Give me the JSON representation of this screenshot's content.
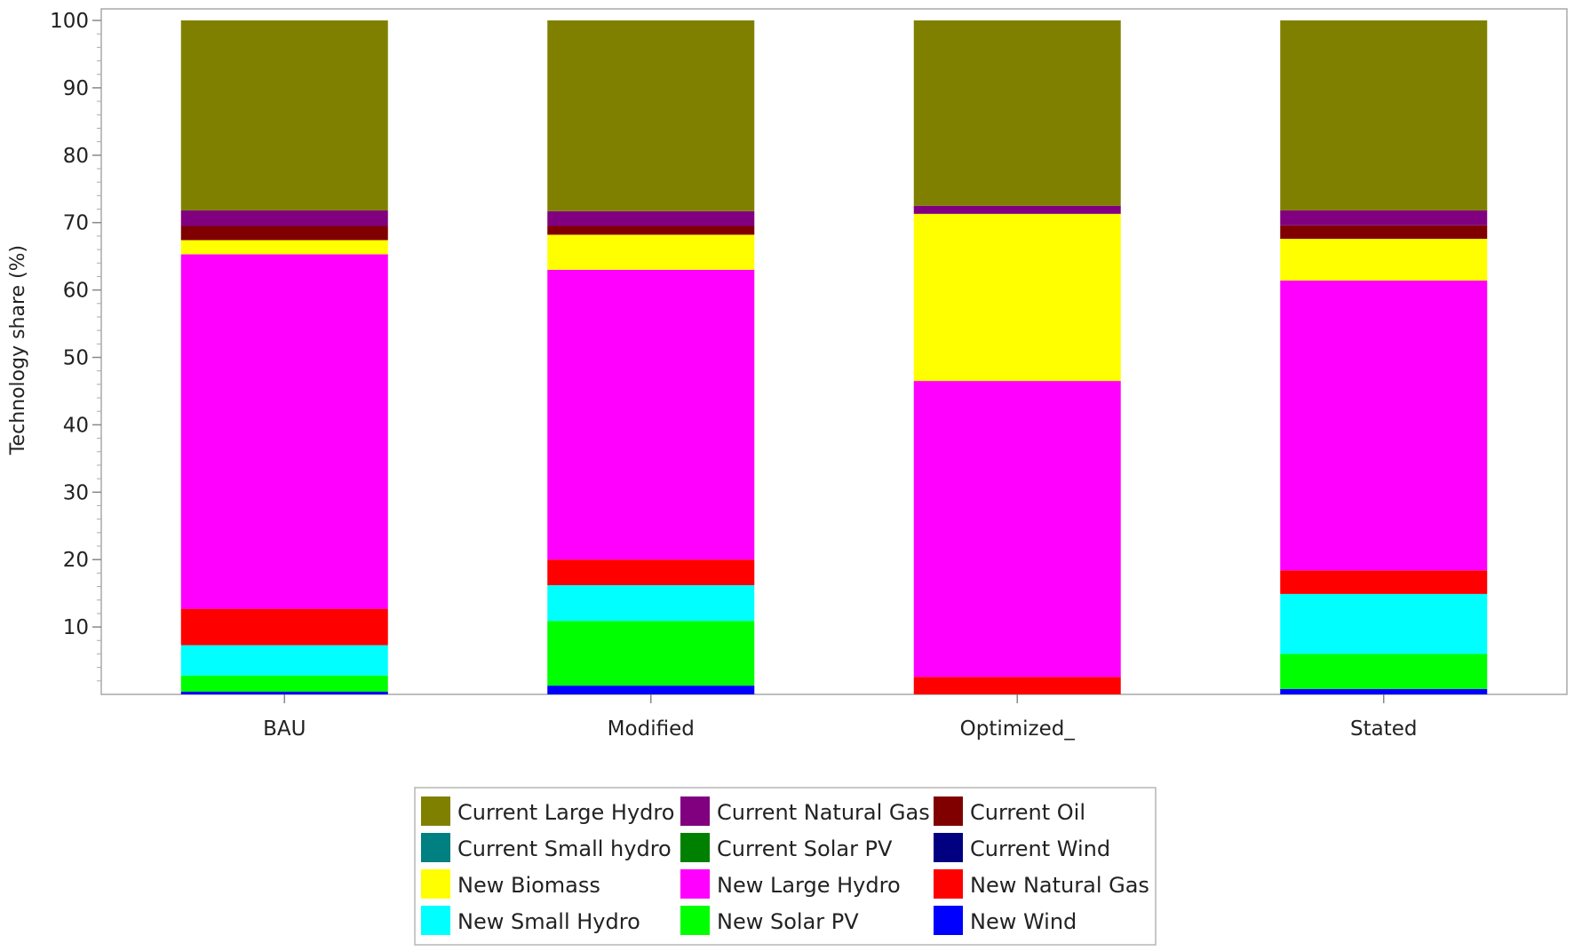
{
  "chart_data": {
    "type": "bar",
    "stacked": true,
    "title": "",
    "xlabel": "",
    "ylabel": "Technology share (%)",
    "ylim": [
      0,
      100
    ],
    "yticks": [
      10,
      20,
      30,
      40,
      50,
      60,
      70,
      80,
      90,
      100
    ],
    "grid": false,
    "legend_position": "bottom",
    "categories": [
      "BAU",
      "Modified",
      "Optimized_",
      "Stated"
    ],
    "series": [
      {
        "name": "New Wind",
        "color": "#0000FF",
        "values": [
          0.4,
          1.3,
          0.0,
          0.8
        ]
      },
      {
        "name": "New Solar PV",
        "color": "#00FF00",
        "values": [
          2.4,
          9.6,
          0.0,
          5.2
        ]
      },
      {
        "name": "New Small Hydro",
        "color": "#00FFFF",
        "values": [
          4.5,
          5.3,
          0.0,
          8.9
        ]
      },
      {
        "name": "New Natural Gas",
        "color": "#FF0000",
        "values": [
          5.4,
          3.8,
          2.6,
          3.5
        ]
      },
      {
        "name": "New Large Hydro",
        "color": "#FF00FF",
        "values": [
          52.6,
          43.0,
          43.9,
          43.0
        ]
      },
      {
        "name": "New Biomass",
        "color": "#FFFF00",
        "values": [
          2.1,
          5.2,
          24.8,
          6.2
        ]
      },
      {
        "name": "Current Wind",
        "color": "#000080",
        "values": [
          0,
          0,
          0,
          0
        ]
      },
      {
        "name": "Current Solar PV",
        "color": "#008000",
        "values": [
          0,
          0,
          0,
          0
        ]
      },
      {
        "name": "Current Small hydro",
        "color": "#008080",
        "values": [
          0,
          0,
          0,
          0
        ]
      },
      {
        "name": "Current Oil",
        "color": "#800000",
        "values": [
          2.1,
          1.3,
          0.0,
          2.0
        ]
      },
      {
        "name": "Current Natural Gas",
        "color": "#800080",
        "values": [
          2.3,
          2.2,
          1.2,
          2.2
        ]
      },
      {
        "name": "Current Large Hydro",
        "color": "#808000",
        "values": [
          28.2,
          28.3,
          27.5,
          28.2
        ]
      }
    ],
    "legend_order": [
      "Current Large Hydro",
      "Current Natural Gas",
      "Current Oil",
      "Current Small hydro",
      "Current Solar PV",
      "Current Wind",
      "New Biomass",
      "New Large Hydro",
      "New Natural Gas",
      "New Small Hydro",
      "New Solar PV",
      "New Wind"
    ]
  }
}
